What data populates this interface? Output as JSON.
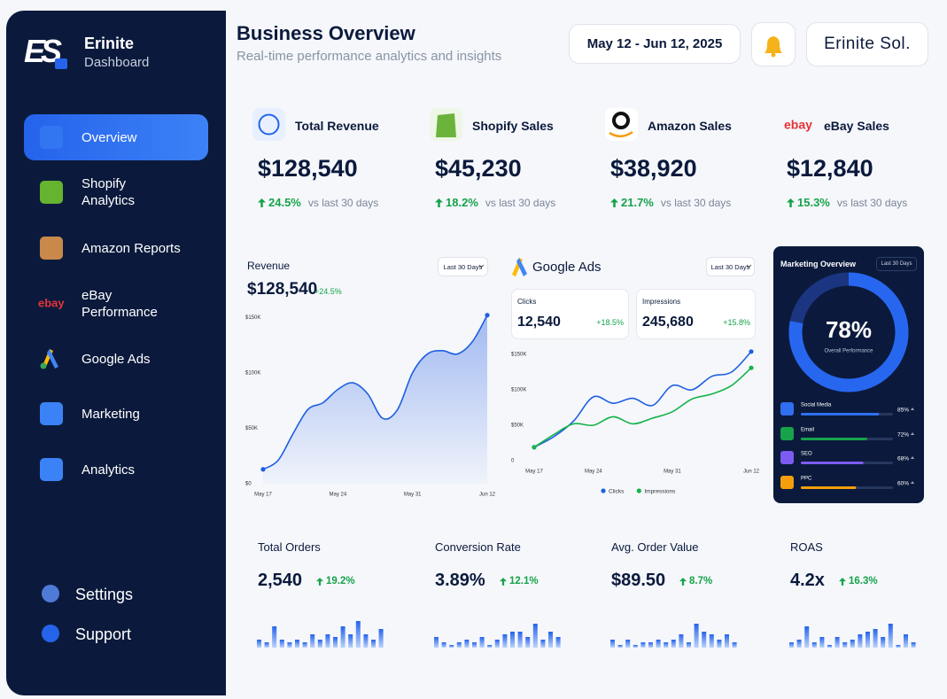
{
  "brand": {
    "logo": "ES",
    "name": "Erinite",
    "subtitle": "Dashboard"
  },
  "icons": {
    "ebay": "ebay"
  },
  "nav": {
    "items": [
      "Overview",
      "Shopify Analytics",
      "Amazon Reports",
      "eBay Performance",
      "Google Ads",
      "Marketing",
      "Analytics"
    ],
    "footer": [
      "Settings",
      "Support"
    ]
  },
  "header": {
    "title": "Business Overview",
    "subtitle": "Real-time performance analytics and insights",
    "date_range": "May 12 - Jun 12, 2025",
    "account": "Erinite Sol."
  },
  "kpis": [
    {
      "label": "Total Revenue",
      "value": "$128,540",
      "change": "24.5%",
      "note": "vs last 30 days"
    },
    {
      "label": "Shopify Sales",
      "value": "$45,230",
      "change": "18.2%",
      "note": "vs last 30 days"
    },
    {
      "label": "Amazon Sales",
      "value": "$38,920",
      "change": "21.7%",
      "note": "vs last 30 days"
    },
    {
      "label": "eBay Sales",
      "value": "$12,840",
      "change": "15.3%",
      "note": "vs last 30 days"
    }
  ],
  "revenue_chart": {
    "type": "area",
    "title": "Revenue",
    "period": "Last 30 Days",
    "total": "$128,540",
    "change": "+24.5%",
    "categories": [
      "May 17",
      null,
      null,
      null,
      null,
      "May 24",
      null,
      null,
      null,
      null,
      "May 31",
      null,
      null,
      null,
      null,
      "Jun 12"
    ],
    "values": [
      13000,
      21000,
      45000,
      67000,
      73000,
      85000,
      91000,
      81000,
      59000,
      67000,
      100000,
      117000,
      120000,
      117000,
      128000,
      152000
    ],
    "color": "#1f5fe0",
    "ylim": [
      0,
      155000
    ],
    "yticks": [
      {
        "value": 0,
        "label": "$0"
      },
      {
        "value": 50000,
        "label": "$50K"
      },
      {
        "value": 100000,
        "label": "$100K"
      },
      {
        "value": 150000,
        "label": "$150K"
      }
    ]
  },
  "ads_chart": {
    "type": "line",
    "title": "Google Ads",
    "period": "Last 30 Days",
    "cards": [
      {
        "label": "Clicks",
        "value": "12,540",
        "change": "+18.5%"
      },
      {
        "label": "Impressions",
        "value": "245,680",
        "change": "+15.8%"
      }
    ],
    "categories": [
      "May 17",
      null,
      null,
      "May 24",
      null,
      null,
      null,
      "May 31",
      null,
      null,
      null,
      "Jun 12"
    ],
    "series": [
      {
        "name": "Clicks",
        "color": "#1f5fe0",
        "values": [
          19000,
          34000,
          56000,
          90000,
          81000,
          88000,
          78000,
          106000,
          100000,
          119000,
          125000,
          154000
        ]
      },
      {
        "name": "Impressions",
        "color": "#16b34a",
        "values": [
          19000,
          37000,
          52000,
          50000,
          62000,
          52000,
          60000,
          69000,
          87000,
          94000,
          106000,
          131000
        ]
      }
    ],
    "ylim": [
      0,
      155000
    ],
    "yticks": [
      0,
      {
        "value": 50000,
        "label": "$50K"
      },
      {
        "value": 100000,
        "label": "$100K"
      },
      {
        "value": 150000,
        "label": "$150K"
      }
    ]
  },
  "marketing": {
    "title": "Marketing Overview",
    "period": "Last 30 Days",
    "overall": 78,
    "overall_label": "78%",
    "overall_caption": "Overall Performance",
    "xlim": [
      0,
      100
    ],
    "channels": [
      {
        "name": "Social Media",
        "value": 85,
        "value_label": "85%",
        "color": "#2f6ff0"
      },
      {
        "name": "Email",
        "value": 72,
        "value_label": "72%",
        "color": "#16a34a"
      },
      {
        "name": "SEO",
        "value": 68,
        "value_label": "68%",
        "color": "#7c5cf0"
      },
      {
        "name": "PPC",
        "value": 60,
        "value_label": "60%",
        "color": "#f59e0b"
      }
    ]
  },
  "metrics_ylim": [
    0,
    10
  ],
  "metrics": [
    {
      "label": "Total Orders",
      "value": "2,540",
      "change": "19.2%",
      "bars": [
        3,
        2,
        8,
        3,
        2,
        3,
        2,
        5,
        3,
        5,
        4,
        8,
        5,
        10,
        5,
        3,
        7
      ]
    },
    {
      "label": "Conversion Rate",
      "value": "3.89%",
      "change": "12.1%",
      "bars": [
        4,
        2,
        1,
        2,
        3,
        2,
        4,
        1,
        3,
        5,
        6,
        6,
        4,
        9,
        3,
        6,
        4
      ]
    },
    {
      "label": "Avg. Order Value",
      "value": "$89.50",
      "change": "8.7%",
      "bars": [
        3,
        1,
        3,
        1,
        2,
        2,
        3,
        2,
        3,
        5,
        2,
        9,
        6,
        5,
        3,
        5,
        2
      ]
    },
    {
      "label": "ROAS",
      "value": "4.2x",
      "change": "16.3%",
      "bars": [
        2,
        3,
        8,
        2,
        4,
        1,
        4,
        2,
        3,
        5,
        6,
        7,
        4,
        9,
        1,
        5,
        2
      ]
    }
  ]
}
